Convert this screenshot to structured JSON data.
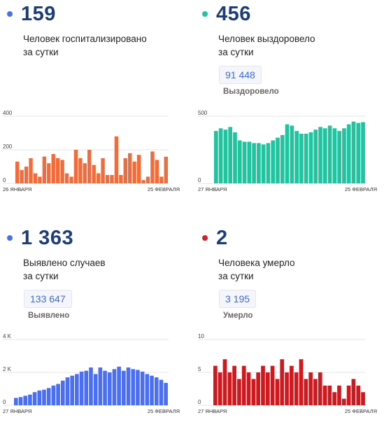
{
  "panels": [
    {
      "number": "159",
      "dot_color": "#4a72e8",
      "line1": "Человек госпитализировано",
      "line2": "за сутки",
      "total": null,
      "total_label": null
    },
    {
      "number": "456",
      "dot_color": "#20c5a0",
      "line1": "Человек выздоровело",
      "line2": "за сутки",
      "total": "91 448",
      "total_label": "Выздоровело"
    },
    {
      "number": "1 363",
      "dot_color": "#4a72e8",
      "line1": "Выявлено случаев",
      "line2": "за сутки",
      "total": "133 647",
      "total_label": "Выявлено"
    },
    {
      "number": "2",
      "dot_color": "#d42027",
      "line1": "Человека умерло",
      "line2": "за сутки",
      "total": "3 195",
      "total_label": "Умерло"
    }
  ],
  "chart_data": [
    {
      "type": "bar",
      "color": "#f26b3a",
      "x_start_label": "26 ЯНВАРЯ",
      "x_end_label": "25 ФЕВРАЛЯ",
      "yticks": [
        0,
        200,
        400
      ],
      "ytick_labels": [
        "0",
        "200",
        "400"
      ],
      "ylim": [
        0,
        400
      ],
      "grid": true,
      "values": [
        130,
        80,
        100,
        150,
        60,
        40,
        160,
        120,
        175,
        150,
        140,
        60,
        40,
        200,
        150,
        120,
        200,
        110,
        60,
        150,
        50,
        50,
        280,
        50,
        150,
        180,
        130,
        170,
        20,
        40,
        190,
        140,
        40,
        159
      ]
    },
    {
      "type": "bar",
      "color": "#20c5a0",
      "x_start_label": "27 ЯНВАРЯ",
      "x_end_label": "25 ФЕВРАЛЯ",
      "yticks": [
        0,
        500
      ],
      "ytick_labels": [
        "0",
        "500"
      ],
      "ylim": [
        0,
        500
      ],
      "grid": true,
      "values": [
        390,
        410,
        400,
        420,
        380,
        320,
        310,
        310,
        300,
        300,
        290,
        300,
        320,
        340,
        360,
        440,
        430,
        390,
        370,
        370,
        380,
        400,
        420,
        410,
        430,
        410,
        390,
        410,
        440,
        460,
        450,
        456
      ]
    },
    {
      "type": "bar",
      "color": "#4a6ff0",
      "x_start_label": "27 ЯНВАРЯ",
      "x_end_label": "25 ФЕВРАЛЯ",
      "yticks": [
        0,
        2000,
        4000
      ],
      "ytick_labels": [
        "0",
        "2 K",
        "4 K"
      ],
      "ylim": [
        0,
        4000
      ],
      "grid": true,
      "values": [
        450,
        500,
        580,
        650,
        800,
        900,
        950,
        1050,
        1200,
        1300,
        1500,
        1700,
        1800,
        1900,
        2050,
        2100,
        2300,
        1900,
        2300,
        2100,
        2000,
        2200,
        2350,
        2100,
        2300,
        2200,
        2150,
        2050,
        1900,
        1800,
        1700,
        1550,
        1363
      ]
    },
    {
      "type": "bar",
      "color": "#d0191f",
      "x_start_label": "27 ЯНВАРЯ",
      "x_end_label": "25 ФЕВРАЛЯ",
      "yticks": [
        0,
        5,
        10
      ],
      "ytick_labels": [
        "0",
        "5",
        "10"
      ],
      "ylim": [
        0,
        10
      ],
      "grid": true,
      "values": [
        6,
        5,
        7,
        5,
        6,
        4,
        6,
        5,
        4,
        5,
        6,
        5,
        6,
        4,
        7,
        5,
        6,
        5,
        7,
        4,
        5,
        4,
        5,
        3,
        3,
        2,
        3,
        1,
        3,
        4,
        3,
        2
      ]
    }
  ]
}
